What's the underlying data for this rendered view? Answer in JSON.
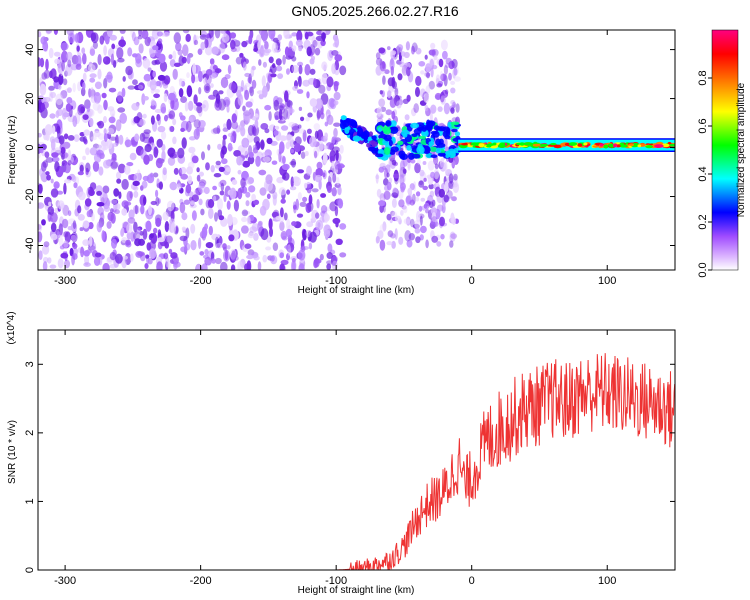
{
  "title": "GN05.2025.266.02.27.R16",
  "chart_data": [
    {
      "type": "heatmap",
      "xlabel": "Height of straight line (km)",
      "ylabel": "Frequency (Hz)",
      "xlim": [
        -320,
        150
      ],
      "ylim": [
        -50,
        48
      ],
      "xticks": [
        -300,
        -200,
        -100,
        0,
        100
      ],
      "yticks": [
        -40,
        -20,
        0,
        20,
        40
      ],
      "colorbar": {
        "label": "Normalized spectral amplitude",
        "range": [
          0.0,
          1.0
        ],
        "ticks": [
          "0.0",
          "0.2",
          "0.4",
          "0.6",
          "0.8"
        ],
        "colors": [
          "#ffffff",
          "#a04cff",
          "#0000ff",
          "#00ffff",
          "#00ff00",
          "#ffff00",
          "#ff8000",
          "#ff0000",
          "#ff0080"
        ]
      },
      "regions": [
        {
          "x_from": -320,
          "x_to": -95,
          "f_from": -50,
          "f_to": 48,
          "amplitude": 0.12
        },
        {
          "x_from": -95,
          "x_to": -70,
          "f_from": -5,
          "f_to": 12,
          "amplitude": 0.35
        },
        {
          "x_from": -70,
          "x_to": -10,
          "f_from": -40,
          "f_to": 42,
          "amplitude": 0.18
        },
        {
          "x_from": -10,
          "x_to": 150,
          "f_from": -1,
          "f_to": 3,
          "amplitude": 0.75
        }
      ]
    },
    {
      "type": "line",
      "xlabel": "Height of straight line (km)",
      "ylabel": "SNR (10 * v/v)",
      "scale_note": "(x10^4)",
      "xlim": [
        -320,
        150
      ],
      "ylim": [
        0,
        3.5
      ],
      "xticks": [
        -300,
        -200,
        -100,
        0,
        100
      ],
      "yticks": [
        0,
        1,
        2,
        3
      ],
      "color": "#ee3333",
      "series": [
        {
          "x": [
            -320,
            -100,
            -80,
            -70,
            -60,
            -50,
            -45,
            -40,
            -35,
            -30,
            -25,
            -20,
            -15,
            -10,
            -5,
            0,
            5,
            10,
            20,
            30,
            40,
            50,
            60,
            70,
            80,
            90,
            100,
            110,
            120,
            130,
            140,
            150
          ],
          "y": [
            0.0,
            0.0,
            0.02,
            0.08,
            0.15,
            0.35,
            0.55,
            0.75,
            0.9,
            1.0,
            1.05,
            1.15,
            1.35,
            1.6,
            1.25,
            1.35,
            1.6,
            1.85,
            2.05,
            2.2,
            2.35,
            2.4,
            2.5,
            2.45,
            2.55,
            2.6,
            2.6,
            2.55,
            2.5,
            2.45,
            2.4,
            2.3
          ]
        }
      ]
    }
  ]
}
